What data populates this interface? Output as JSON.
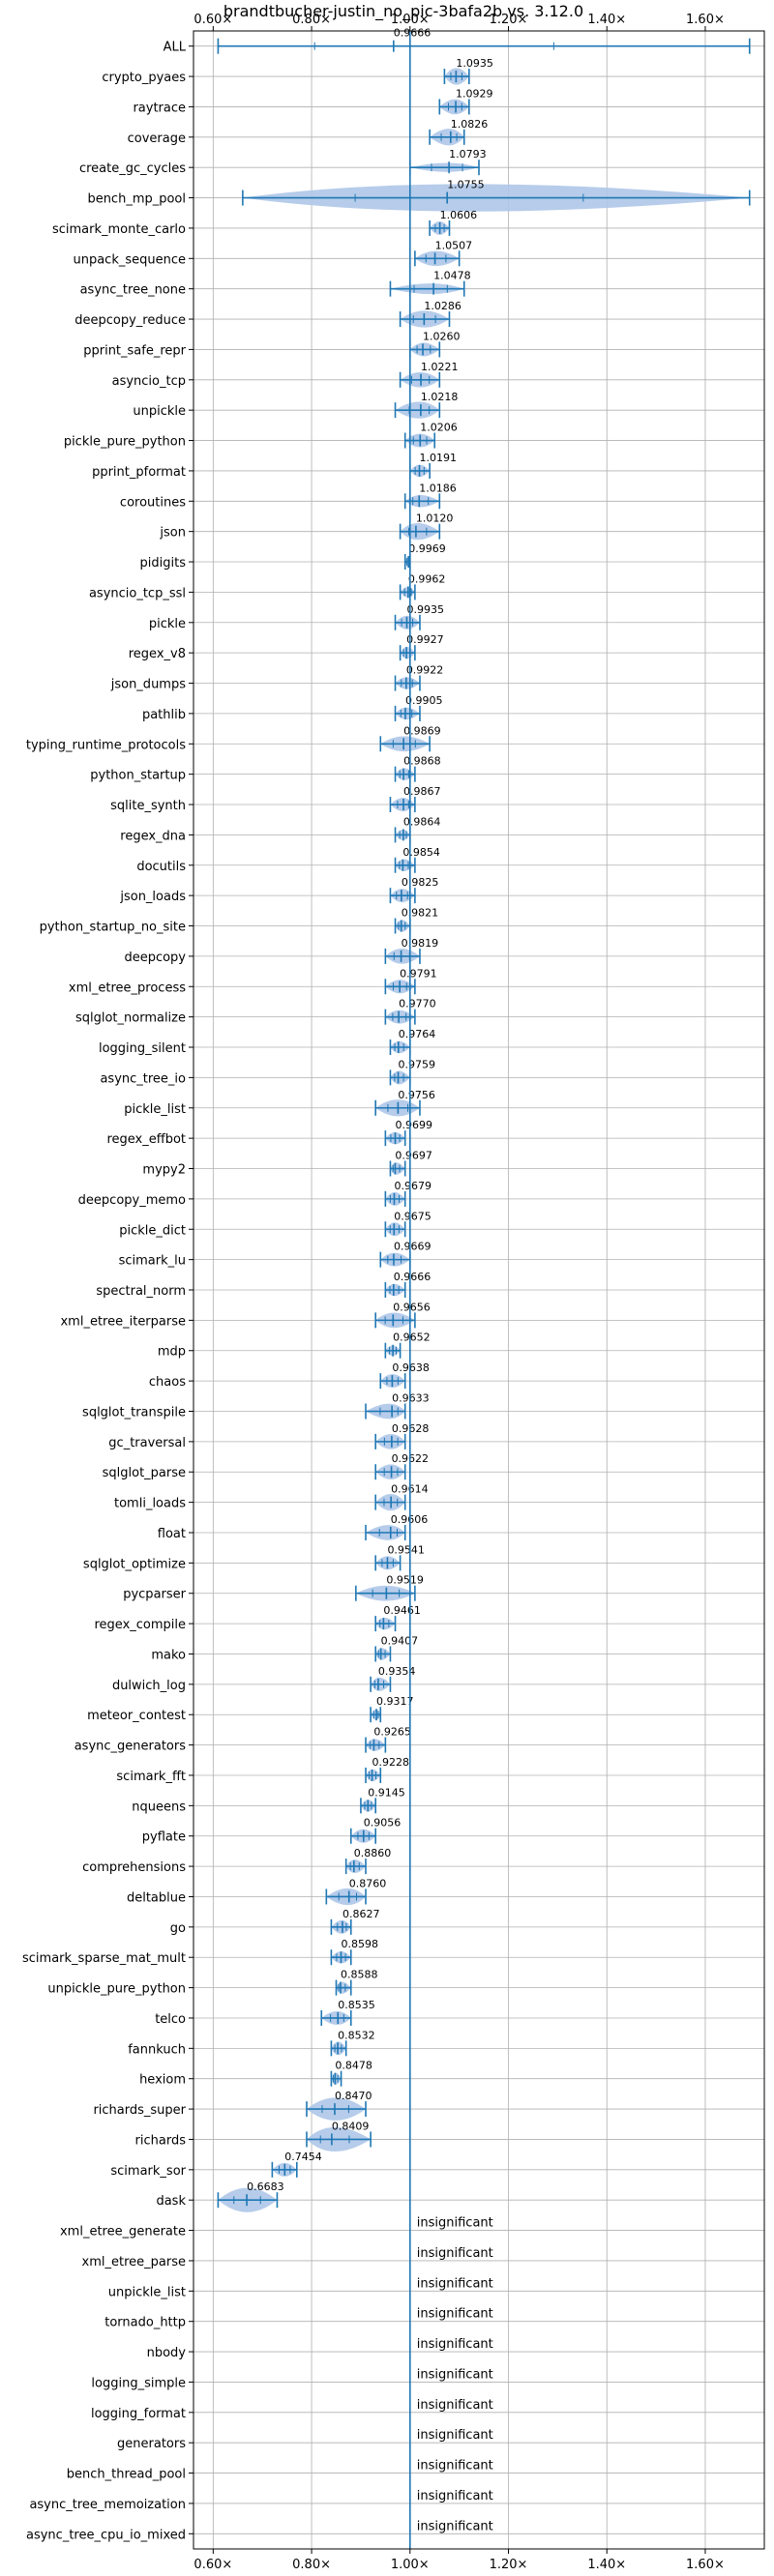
{
  "chart_data": {
    "type": "violin",
    "title": "brandtbucher-justin_no_pic-3bafa2b vs. 3.12.0",
    "xlim": [
      0.56,
      1.72
    ],
    "xticks": [
      0.6,
      0.8,
      1.0,
      1.2,
      1.4,
      1.6
    ],
    "xtick_labels": [
      "0.60×",
      "0.80×",
      "1.00×",
      "1.20×",
      "1.40×",
      "1.60×"
    ],
    "reference_line": 1.0,
    "grid": true,
    "accent_color": "#1f77b4",
    "violin_color": "#aec7e8",
    "insignificant_label": "insignificant",
    "benchmarks": [
      {
        "name": "ALL",
        "value": 0.9666,
        "label": "0.9666",
        "min": 0.61,
        "max": 1.69,
        "width": 0.03
      },
      {
        "name": "crypto_pyaes",
        "value": 1.0935,
        "label": "1.0935",
        "min": 1.07,
        "max": 1.12,
        "width": 0.55
      },
      {
        "name": "raytrace",
        "value": 1.0929,
        "label": "1.0929",
        "min": 1.06,
        "max": 1.12,
        "width": 0.5
      },
      {
        "name": "coverage",
        "value": 1.0826,
        "label": "1.0826",
        "min": 1.04,
        "max": 1.11,
        "width": 0.55
      },
      {
        "name": "create_gc_cycles",
        "value": 1.0793,
        "label": "1.0793",
        "min": 1.0,
        "max": 1.14,
        "width": 0.3
      },
      {
        "name": "bench_mp_pool",
        "value": 1.0755,
        "label": "1.0755",
        "min": 0.66,
        "max": 1.69,
        "width": 0.9
      },
      {
        "name": "scimark_monte_carlo",
        "value": 1.0606,
        "label": "1.0606",
        "min": 1.04,
        "max": 1.08,
        "width": 0.45
      },
      {
        "name": "unpack_sequence",
        "value": 1.0507,
        "label": "1.0507",
        "min": 1.01,
        "max": 1.1,
        "width": 0.5
      },
      {
        "name": "async_tree_none",
        "value": 1.0478,
        "label": "1.0478",
        "min": 0.96,
        "max": 1.11,
        "width": 0.35
      },
      {
        "name": "deepcopy_reduce",
        "value": 1.0286,
        "label": "1.0286",
        "min": 0.98,
        "max": 1.08,
        "width": 0.55
      },
      {
        "name": "pprint_safe_repr",
        "value": 1.026,
        "label": "1.0260",
        "min": 1.0,
        "max": 1.06,
        "width": 0.45
      },
      {
        "name": "asyncio_tcp",
        "value": 1.0221,
        "label": "1.0221",
        "min": 0.98,
        "max": 1.06,
        "width": 0.5
      },
      {
        "name": "unpickle",
        "value": 1.0218,
        "label": "1.0218",
        "min": 0.97,
        "max": 1.06,
        "width": 0.55
      },
      {
        "name": "pickle_pure_python",
        "value": 1.0206,
        "label": "1.0206",
        "min": 0.99,
        "max": 1.05,
        "width": 0.45
      },
      {
        "name": "pprint_pformat",
        "value": 1.0191,
        "label": "1.0191",
        "min": 1.0,
        "max": 1.04,
        "width": 0.4
      },
      {
        "name": "coroutines",
        "value": 1.0186,
        "label": "1.0186",
        "min": 0.99,
        "max": 1.06,
        "width": 0.4
      },
      {
        "name": "json",
        "value": 1.012,
        "label": "1.0120",
        "min": 0.98,
        "max": 1.06,
        "width": 0.55
      },
      {
        "name": "pidigits",
        "value": 0.9969,
        "label": "0.9969",
        "min": 0.99,
        "max": 1.0,
        "width": 0.35
      },
      {
        "name": "asyncio_tcp_ssl",
        "value": 0.9962,
        "label": "0.9962",
        "min": 0.98,
        "max": 1.01,
        "width": 0.35
      },
      {
        "name": "pickle",
        "value": 0.9935,
        "label": "0.9935",
        "min": 0.97,
        "max": 1.02,
        "width": 0.45
      },
      {
        "name": "regex_v8",
        "value": 0.9927,
        "label": "0.9927",
        "min": 0.98,
        "max": 1.01,
        "width": 0.4
      },
      {
        "name": "json_dumps",
        "value": 0.9922,
        "label": "0.9922",
        "min": 0.97,
        "max": 1.02,
        "width": 0.4
      },
      {
        "name": "pathlib",
        "value": 0.9905,
        "label": "0.9905",
        "min": 0.97,
        "max": 1.02,
        "width": 0.4
      },
      {
        "name": "typing_runtime_protocols",
        "value": 0.9869,
        "label": "0.9869",
        "min": 0.94,
        "max": 1.04,
        "width": 0.5
      },
      {
        "name": "python_startup",
        "value": 0.9868,
        "label": "0.9868",
        "min": 0.97,
        "max": 1.01,
        "width": 0.4
      },
      {
        "name": "sqlite_synth",
        "value": 0.9867,
        "label": "0.9867",
        "min": 0.96,
        "max": 1.01,
        "width": 0.45
      },
      {
        "name": "regex_dna",
        "value": 0.9864,
        "label": "0.9864",
        "min": 0.97,
        "max": 1.0,
        "width": 0.35
      },
      {
        "name": "docutils",
        "value": 0.9854,
        "label": "0.9854",
        "min": 0.97,
        "max": 1.01,
        "width": 0.4
      },
      {
        "name": "json_loads",
        "value": 0.9825,
        "label": "0.9825",
        "min": 0.96,
        "max": 1.01,
        "width": 0.45
      },
      {
        "name": "python_startup_no_site",
        "value": 0.9821,
        "label": "0.9821",
        "min": 0.97,
        "max": 1.0,
        "width": 0.4
      },
      {
        "name": "deepcopy",
        "value": 0.9819,
        "label": "0.9819",
        "min": 0.95,
        "max": 1.02,
        "width": 0.5
      },
      {
        "name": "xml_etree_process",
        "value": 0.9791,
        "label": "0.9791",
        "min": 0.95,
        "max": 1.01,
        "width": 0.45
      },
      {
        "name": "sqlglot_normalize",
        "value": 0.977,
        "label": "0.9770",
        "min": 0.95,
        "max": 1.01,
        "width": 0.45
      },
      {
        "name": "logging_silent",
        "value": 0.9764,
        "label": "0.9764",
        "min": 0.96,
        "max": 1.0,
        "width": 0.4
      },
      {
        "name": "async_tree_io",
        "value": 0.9759,
        "label": "0.9759",
        "min": 0.96,
        "max": 1.0,
        "width": 0.45
      },
      {
        "name": "pickle_list",
        "value": 0.9756,
        "label": "0.9756",
        "min": 0.93,
        "max": 1.02,
        "width": 0.55
      },
      {
        "name": "regex_effbot",
        "value": 0.9699,
        "label": "0.9699",
        "min": 0.95,
        "max": 0.99,
        "width": 0.4
      },
      {
        "name": "mypy2",
        "value": 0.9697,
        "label": "0.9697",
        "min": 0.96,
        "max": 0.99,
        "width": 0.4
      },
      {
        "name": "deepcopy_memo",
        "value": 0.9679,
        "label": "0.9679",
        "min": 0.95,
        "max": 0.99,
        "width": 0.45
      },
      {
        "name": "pickle_dict",
        "value": 0.9675,
        "label": "0.9675",
        "min": 0.95,
        "max": 0.99,
        "width": 0.45
      },
      {
        "name": "scimark_lu",
        "value": 0.9669,
        "label": "0.9669",
        "min": 0.94,
        "max": 1.0,
        "width": 0.45
      },
      {
        "name": "spectral_norm",
        "value": 0.9666,
        "label": "0.9666",
        "min": 0.95,
        "max": 0.99,
        "width": 0.4
      },
      {
        "name": "xml_etree_iterparse",
        "value": 0.9656,
        "label": "0.9656",
        "min": 0.93,
        "max": 1.01,
        "width": 0.5
      },
      {
        "name": "mdp",
        "value": 0.9652,
        "label": "0.9652",
        "min": 0.95,
        "max": 0.98,
        "width": 0.35
      },
      {
        "name": "chaos",
        "value": 0.9638,
        "label": "0.9638",
        "min": 0.94,
        "max": 0.99,
        "width": 0.45
      },
      {
        "name": "sqlglot_transpile",
        "value": 0.9633,
        "label": "0.9633",
        "min": 0.91,
        "max": 0.99,
        "width": 0.5
      },
      {
        "name": "gc_traversal",
        "value": 0.9628,
        "label": "0.9628",
        "min": 0.93,
        "max": 0.99,
        "width": 0.5
      },
      {
        "name": "sqlglot_parse",
        "value": 0.9622,
        "label": "0.9622",
        "min": 0.93,
        "max": 0.99,
        "width": 0.5
      },
      {
        "name": "tomli_loads",
        "value": 0.9614,
        "label": "0.9614",
        "min": 0.93,
        "max": 0.99,
        "width": 0.55
      },
      {
        "name": "float",
        "value": 0.9606,
        "label": "0.9606",
        "min": 0.91,
        "max": 0.99,
        "width": 0.5
      },
      {
        "name": "sqlglot_optimize",
        "value": 0.9541,
        "label": "0.9541",
        "min": 0.93,
        "max": 0.98,
        "width": 0.45
      },
      {
        "name": "pycparser",
        "value": 0.9519,
        "label": "0.9519",
        "min": 0.89,
        "max": 1.01,
        "width": 0.5
      },
      {
        "name": "regex_compile",
        "value": 0.9461,
        "label": "0.9461",
        "min": 0.93,
        "max": 0.97,
        "width": 0.4
      },
      {
        "name": "mako",
        "value": 0.9407,
        "label": "0.9407",
        "min": 0.93,
        "max": 0.96,
        "width": 0.4
      },
      {
        "name": "dulwich_log",
        "value": 0.9354,
        "label": "0.9354",
        "min": 0.92,
        "max": 0.96,
        "width": 0.45
      },
      {
        "name": "meteor_contest",
        "value": 0.9317,
        "label": "0.9317",
        "min": 0.92,
        "max": 0.94,
        "width": 0.35
      },
      {
        "name": "async_generators",
        "value": 0.9265,
        "label": "0.9265",
        "min": 0.91,
        "max": 0.95,
        "width": 0.4
      },
      {
        "name": "scimark_fft",
        "value": 0.9228,
        "label": "0.9228",
        "min": 0.91,
        "max": 0.94,
        "width": 0.4
      },
      {
        "name": "nqueens",
        "value": 0.9145,
        "label": "0.9145",
        "min": 0.9,
        "max": 0.93,
        "width": 0.4
      },
      {
        "name": "pyflate",
        "value": 0.9056,
        "label": "0.9056",
        "min": 0.88,
        "max": 0.93,
        "width": 0.45
      },
      {
        "name": "comprehensions",
        "value": 0.886,
        "label": "0.8860",
        "min": 0.87,
        "max": 0.91,
        "width": 0.45
      },
      {
        "name": "deltablue",
        "value": 0.876,
        "label": "0.8760",
        "min": 0.83,
        "max": 0.91,
        "width": 0.55
      },
      {
        "name": "go",
        "value": 0.8627,
        "label": "0.8627",
        "min": 0.84,
        "max": 0.88,
        "width": 0.45
      },
      {
        "name": "scimark_sparse_mat_mult",
        "value": 0.8598,
        "label": "0.8598",
        "min": 0.84,
        "max": 0.88,
        "width": 0.4
      },
      {
        "name": "unpickle_pure_python",
        "value": 0.8588,
        "label": "0.8588",
        "min": 0.85,
        "max": 0.88,
        "width": 0.4
      },
      {
        "name": "telco",
        "value": 0.8535,
        "label": "0.8535",
        "min": 0.82,
        "max": 0.88,
        "width": 0.45
      },
      {
        "name": "fannkuch",
        "value": 0.8532,
        "label": "0.8532",
        "min": 0.84,
        "max": 0.87,
        "width": 0.45
      },
      {
        "name": "hexiom",
        "value": 0.8478,
        "label": "0.8478",
        "min": 0.84,
        "max": 0.86,
        "width": 0.4
      },
      {
        "name": "richards_super",
        "value": 0.847,
        "label": "0.8470",
        "min": 0.79,
        "max": 0.91,
        "width": 0.75
      },
      {
        "name": "richards",
        "value": 0.8409,
        "label": "0.8409",
        "min": 0.79,
        "max": 0.92,
        "width": 0.8
      },
      {
        "name": "scimark_sor",
        "value": 0.7454,
        "label": "0.7454",
        "min": 0.72,
        "max": 0.77,
        "width": 0.45
      },
      {
        "name": "dask",
        "value": 0.6683,
        "label": "0.6683",
        "min": 0.61,
        "max": 0.73,
        "width": 0.8
      },
      {
        "name": "xml_etree_generate",
        "value": null,
        "label": "insignificant"
      },
      {
        "name": "xml_etree_parse",
        "value": null,
        "label": "insignificant"
      },
      {
        "name": "unpickle_list",
        "value": null,
        "label": "insignificant"
      },
      {
        "name": "tornado_http",
        "value": null,
        "label": "insignificant"
      },
      {
        "name": "nbody",
        "value": null,
        "label": "insignificant"
      },
      {
        "name": "logging_simple",
        "value": null,
        "label": "insignificant"
      },
      {
        "name": "logging_format",
        "value": null,
        "label": "insignificant"
      },
      {
        "name": "generators",
        "value": null,
        "label": "insignificant"
      },
      {
        "name": "bench_thread_pool",
        "value": null,
        "label": "insignificant"
      },
      {
        "name": "async_tree_memoization",
        "value": null,
        "label": "insignificant"
      },
      {
        "name": "async_tree_cpu_io_mixed",
        "value": null,
        "label": "insignificant"
      }
    ]
  }
}
